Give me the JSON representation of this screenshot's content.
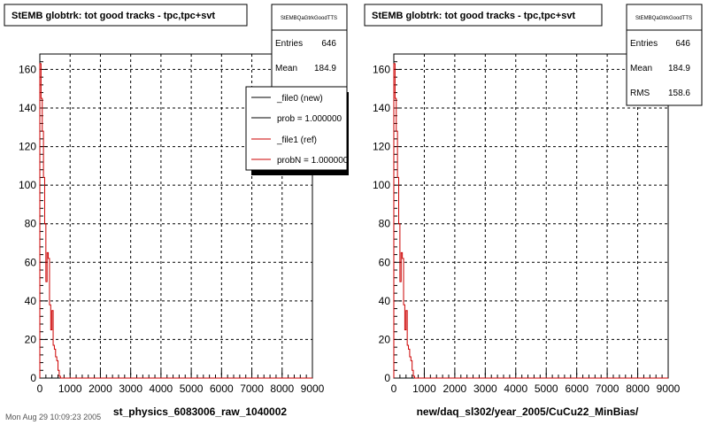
{
  "chart_data": [
    {
      "type": "histogram",
      "title": "StEMB globtrk: tot good tracks - tpc,tpc+svt",
      "xlabel": "st_physics_6083006_raw_1040002",
      "xlim": [
        0,
        9000
      ],
      "ylim": [
        0,
        168
      ],
      "x_ticks": [
        0,
        1000,
        2000,
        3000,
        4000,
        5000,
        6000,
        7000,
        8000,
        9000
      ],
      "y_ticks": [
        0,
        20,
        40,
        60,
        80,
        100,
        120,
        140,
        160
      ],
      "grid": true,
      "stats": {
        "name": "StEMBQaGtrkGoodTTS",
        "entries_label": "Entries",
        "entries": "646",
        "mean_label": "Mean",
        "mean": "184.9"
      },
      "legend": {
        "placement": "top-right",
        "entries": [
          {
            "label": "_file0 (new)",
            "color": "#000000"
          },
          {
            "label": "prob = 1.000000",
            "color": "#000000"
          },
          {
            "label": "_file1 (ref)",
            "color": "#cc0000"
          },
          {
            "label": "probN = 1.000000",
            "color": "#cc0000"
          }
        ]
      },
      "series": [
        {
          "color": "#cc0000",
          "bins": [
            {
              "x0": 0,
              "x1": 40,
              "y": 163
            },
            {
              "x0": 40,
              "x1": 80,
              "y": 145
            },
            {
              "x0": 80,
              "x1": 120,
              "y": 128
            },
            {
              "x0": 120,
              "x1": 160,
              "y": 104
            },
            {
              "x0": 160,
              "x1": 200,
              "y": 80
            },
            {
              "x0": 200,
              "x1": 240,
              "y": 50
            },
            {
              "x0": 240,
              "x1": 280,
              "y": 65
            },
            {
              "x0": 280,
              "x1": 320,
              "y": 62
            },
            {
              "x0": 320,
              "x1": 360,
              "y": 38
            },
            {
              "x0": 360,
              "x1": 400,
              "y": 25
            },
            {
              "x0": 400,
              "x1": 440,
              "y": 35
            },
            {
              "x0": 440,
              "x1": 480,
              "y": 17
            },
            {
              "x0": 480,
              "x1": 520,
              "y": 15
            },
            {
              "x0": 520,
              "x1": 560,
              "y": 11
            },
            {
              "x0": 560,
              "x1": 600,
              "y": 9
            },
            {
              "x0": 600,
              "x1": 640,
              "y": 4
            },
            {
              "x0": 640,
              "x1": 680,
              "y": 1
            },
            {
              "x0": 680,
              "x1": 720,
              "y": 0
            }
          ]
        }
      ]
    },
    {
      "type": "histogram",
      "title": "StEMB globtrk: tot good tracks - tpc,tpc+svt",
      "xlabel": "new/daq_sl302/year_2005/CuCu22_MinBias/",
      "xlim": [
        0,
        9000
      ],
      "ylim": [
        0,
        168
      ],
      "x_ticks": [
        0,
        1000,
        2000,
        3000,
        4000,
        5000,
        6000,
        7000,
        8000,
        9000
      ],
      "y_ticks": [
        0,
        20,
        40,
        60,
        80,
        100,
        120,
        140,
        160
      ],
      "grid": true,
      "stats": {
        "name": "StEMBQaGtrkGoodTTS",
        "entries_label": "Entries",
        "entries": "646",
        "mean_label": "Mean",
        "mean": "184.9",
        "rms_label": "RMS",
        "rms": "158.6"
      },
      "series": [
        {
          "color": "#cc0000",
          "bins": [
            {
              "x0": 0,
              "x1": 40,
              "y": 163
            },
            {
              "x0": 40,
              "x1": 80,
              "y": 145
            },
            {
              "x0": 80,
              "x1": 120,
              "y": 128
            },
            {
              "x0": 120,
              "x1": 160,
              "y": 104
            },
            {
              "x0": 160,
              "x1": 200,
              "y": 80
            },
            {
              "x0": 200,
              "x1": 240,
              "y": 50
            },
            {
              "x0": 240,
              "x1": 280,
              "y": 65
            },
            {
              "x0": 280,
              "x1": 320,
              "y": 62
            },
            {
              "x0": 320,
              "x1": 360,
              "y": 38
            },
            {
              "x0": 360,
              "x1": 400,
              "y": 25
            },
            {
              "x0": 400,
              "x1": 440,
              "y": 35
            },
            {
              "x0": 440,
              "x1": 480,
              "y": 17
            },
            {
              "x0": 480,
              "x1": 520,
              "y": 15
            },
            {
              "x0": 520,
              "x1": 560,
              "y": 11
            },
            {
              "x0": 560,
              "x1": 600,
              "y": 9
            },
            {
              "x0": 600,
              "x1": 640,
              "y": 4
            },
            {
              "x0": 640,
              "x1": 680,
              "y": 1
            },
            {
              "x0": 680,
              "x1": 720,
              "y": 0
            }
          ]
        }
      ]
    }
  ],
  "footer": "Mon Aug 29 10:09:23 2005"
}
